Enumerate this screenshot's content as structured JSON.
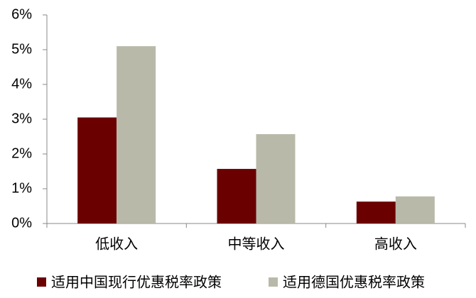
{
  "chart_data": {
    "type": "bar",
    "categories": [
      "低收入",
      "中等收入",
      "高收入"
    ],
    "series": [
      {
        "name": "适用中国现行优惠税率政策",
        "color": "#6b0000",
        "values": [
          3.05,
          1.57,
          0.63
        ]
      },
      {
        "name": "适用德国优惠税率政策",
        "color": "#b9b9a9",
        "values": [
          5.1,
          2.57,
          0.78
        ]
      }
    ],
    "ylim": [
      0,
      6
    ],
    "yticks": [
      {
        "value": 0,
        "label": "0%"
      },
      {
        "value": 1,
        "label": "1%"
      },
      {
        "value": 2,
        "label": "2%"
      },
      {
        "value": 3,
        "label": "3%"
      },
      {
        "value": 4,
        "label": "4%"
      },
      {
        "value": 5,
        "label": "5%"
      },
      {
        "value": 6,
        "label": "6%"
      }
    ],
    "grid": false,
    "legend": "bottom"
  }
}
